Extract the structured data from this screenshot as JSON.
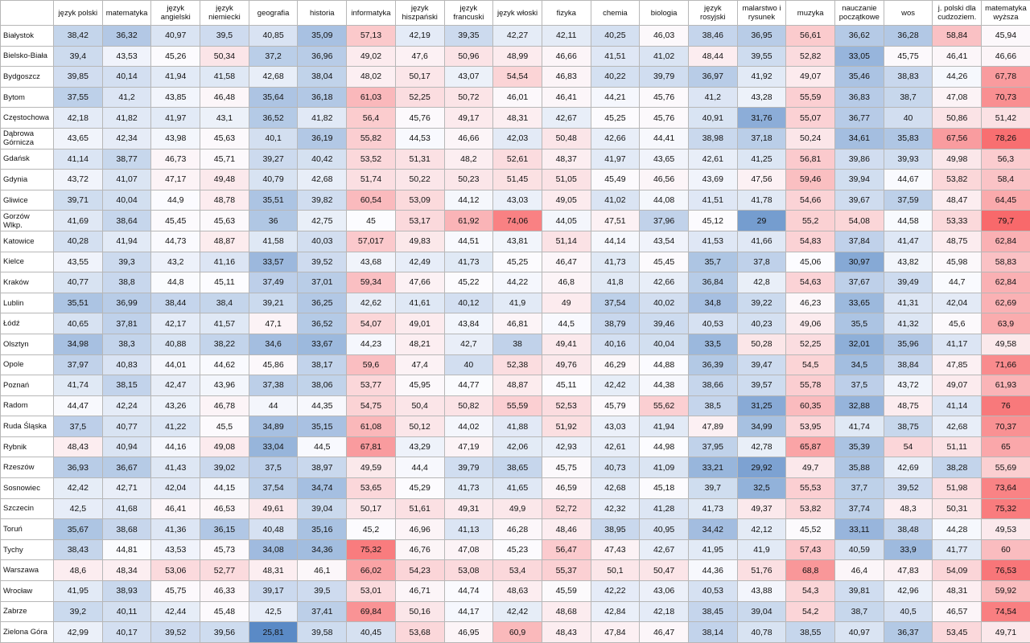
{
  "chart_data": {
    "type": "heatmap",
    "columns": [
      "język polski",
      "matematyka",
      "język angielski",
      "język niemiecki",
      "geografia",
      "historia",
      "informatyka",
      "język hiszpański",
      "język francuski",
      "język włoski",
      "fizyka",
      "chemia",
      "biologia",
      "język rosyjski",
      "malarstwo i rysunek",
      "muzyka",
      "nauczanie początkowe",
      "wos",
      "j. polski dla cudzoziem.",
      "matematyka wyższa"
    ],
    "rows": [
      {
        "city": "Białystok",
        "values": [
          "38,42",
          "36,32",
          "40,97",
          "39,5",
          "40,85",
          "35,09",
          "57,13",
          "42,19",
          "39,35",
          "42,27",
          "42,11",
          "40,25",
          "46,03",
          "38,46",
          "36,95",
          "56,61",
          "36,62",
          "36,28",
          "58,84",
          "45,94"
        ]
      },
      {
        "city": "Bielsko-Biała",
        "values": [
          "39,4",
          "43,53",
          "45,26",
          "50,34",
          "37,2",
          "36,96",
          "49,02",
          "47,6",
          "50,96",
          "48,99",
          "46,66",
          "41,51",
          "41,02",
          "48,44",
          "39,55",
          "52,82",
          "33,05",
          "45,75",
          "46,41",
          "46,66"
        ]
      },
      {
        "city": "Bydgoszcz",
        "values": [
          "39,85",
          "40,14",
          "41,94",
          "41,58",
          "42,68",
          "38,04",
          "48,02",
          "50,17",
          "43,07",
          "54,54",
          "46,83",
          "40,22",
          "39,79",
          "36,97",
          "41,92",
          "49,07",
          "35,46",
          "38,83",
          "44,26",
          "67,78"
        ]
      },
      {
        "city": "Bytom",
        "values": [
          "37,55",
          "41,2",
          "43,85",
          "46,48",
          "35,64",
          "36,18",
          "61,03",
          "52,25",
          "50,72",
          "46,01",
          "46,41",
          "44,21",
          "45,76",
          "41,2",
          "43,28",
          "55,59",
          "36,83",
          "38,7",
          "47,08",
          "70,73"
        ]
      },
      {
        "city": "Częstochowa",
        "values": [
          "42,18",
          "41,82",
          "41,97",
          "43,1",
          "36,52",
          "41,82",
          "56,4",
          "45,76",
          "49,17",
          "48,31",
          "42,67",
          "45,25",
          "45,76",
          "40,91",
          "31,76",
          "55,07",
          "36,77",
          "40",
          "50,86",
          "51,42"
        ]
      },
      {
        "city": "Dąbrowa Górnicza",
        "values": [
          "43,65",
          "42,34",
          "43,98",
          "45,63",
          "40,1",
          "36,19",
          "55,82",
          "44,53",
          "46,66",
          "42,03",
          "50,48",
          "42,66",
          "44,41",
          "38,98",
          "37,18",
          "50,24",
          "34,61",
          "35,83",
          "67,56",
          "78,26"
        ]
      },
      {
        "city": "Gdańsk",
        "values": [
          "41,14",
          "38,77",
          "46,73",
          "45,71",
          "39,27",
          "40,42",
          "53,52",
          "51,31",
          "48,2",
          "52,61",
          "48,37",
          "41,97",
          "43,65",
          "42,61",
          "41,25",
          "56,81",
          "39,86",
          "39,93",
          "49,98",
          "56,3"
        ]
      },
      {
        "city": "Gdynia",
        "values": [
          "43,72",
          "41,07",
          "47,17",
          "49,48",
          "40,79",
          "42,68",
          "51,74",
          "50,22",
          "50,23",
          "51,45",
          "51,05",
          "45,49",
          "46,56",
          "43,69",
          "47,56",
          "59,46",
          "39,94",
          "44,67",
          "53,82",
          "58,4"
        ]
      },
      {
        "city": "Gliwice",
        "values": [
          "39,71",
          "40,04",
          "44,9",
          "48,78",
          "35,51",
          "39,82",
          "60,54",
          "53,09",
          "44,12",
          "43,03",
          "49,05",
          "41,02",
          "44,08",
          "41,51",
          "41,78",
          "54,66",
          "39,67",
          "37,59",
          "48,47",
          "64,45"
        ]
      },
      {
        "city": "Gorzów Wlkp.",
        "values": [
          "41,69",
          "38,64",
          "45,45",
          "45,63",
          "36",
          "42,75",
          "45",
          "53,17",
          "61,92",
          "74,06",
          "44,05",
          "47,51",
          "37,96",
          "45,12",
          "29",
          "55,2",
          "54,08",
          "44,58",
          "53,33",
          "79,7"
        ]
      },
      {
        "city": "Katowice",
        "values": [
          "40,28",
          "41,94",
          "44,73",
          "48,87",
          "41,58",
          "40,03",
          "57,017",
          "49,83",
          "44,51",
          "43,81",
          "51,14",
          "44,14",
          "43,54",
          "41,53",
          "41,66",
          "54,83",
          "37,84",
          "41,47",
          "48,75",
          "62,84"
        ]
      },
      {
        "city": "Kielce",
        "values": [
          "43,55",
          "39,3",
          "43,2",
          "41,16",
          "33,57",
          "39,52",
          "43,68",
          "42,49",
          "41,73",
          "45,25",
          "46,47",
          "41,73",
          "45,45",
          "35,7",
          "37,8",
          "45,06",
          "30,97",
          "43,82",
          "45,98",
          "58,83"
        ]
      },
      {
        "city": "Kraków",
        "values": [
          "40,77",
          "38,8",
          "44,8",
          "45,11",
          "37,49",
          "37,01",
          "59,34",
          "47,66",
          "45,22",
          "44,22",
          "46,8",
          "41,8",
          "42,66",
          "36,84",
          "42,8",
          "54,63",
          "37,67",
          "39,49",
          "44,7",
          "62,84"
        ]
      },
      {
        "city": "Lublin",
        "values": [
          "35,51",
          "36,99",
          "38,44",
          "38,4",
          "39,21",
          "36,25",
          "42,62",
          "41,61",
          "40,12",
          "41,9",
          "49",
          "37,54",
          "40,02",
          "34,8",
          "39,22",
          "46,23",
          "33,65",
          "41,31",
          "42,04",
          "62,69"
        ]
      },
      {
        "city": "Łódź",
        "values": [
          "40,65",
          "37,81",
          "42,17",
          "41,57",
          "47,1",
          "36,52",
          "54,07",
          "49,01",
          "43,84",
          "46,81",
          "44,5",
          "38,79",
          "39,46",
          "40,53",
          "40,23",
          "49,06",
          "35,5",
          "41,32",
          "45,6",
          "63,9"
        ]
      },
      {
        "city": "Olsztyn",
        "values": [
          "34,98",
          "38,3",
          "40,88",
          "38,22",
          "34,6",
          "33,67",
          "44,23",
          "48,21",
          "42,7",
          "38",
          "49,41",
          "40,16",
          "40,04",
          "33,5",
          "50,28",
          "52,25",
          "32,01",
          "35,96",
          "41,17",
          "49,58"
        ]
      },
      {
        "city": "Opole",
        "values": [
          "37,97",
          "40,83",
          "44,01",
          "44,62",
          "45,86",
          "38,17",
          "59,6",
          "47,4",
          "40",
          "52,38",
          "49,76",
          "46,29",
          "44,88",
          "36,39",
          "39,47",
          "54,5",
          "34,5",
          "38,84",
          "47,85",
          "71,66"
        ]
      },
      {
        "city": "Poznań",
        "values": [
          "41,74",
          "38,15",
          "42,47",
          "43,96",
          "37,38",
          "38,06",
          "53,77",
          "45,95",
          "44,77",
          "48,87",
          "45,11",
          "42,42",
          "44,38",
          "38,66",
          "39,57",
          "55,78",
          "37,5",
          "43,72",
          "49,07",
          "61,93"
        ]
      },
      {
        "city": "Radom",
        "values": [
          "44,47",
          "42,24",
          "43,26",
          "46,78",
          "44",
          "44,35",
          "54,75",
          "50,4",
          "50,82",
          "55,59",
          "52,53",
          "45,79",
          "55,62",
          "38,5",
          "31,25",
          "60,35",
          "32,88",
          "48,75",
          "41,14",
          "76"
        ]
      },
      {
        "city": "Ruda Śląska",
        "values": [
          "37,5",
          "40,77",
          "41,22",
          "45,5",
          "34,89",
          "35,15",
          "61,08",
          "50,12",
          "44,02",
          "41,88",
          "51,92",
          "43,03",
          "41,94",
          "47,89",
          "34,99",
          "53,95",
          "41,74",
          "38,75",
          "42,68",
          "70,37"
        ]
      },
      {
        "city": "Rybnik",
        "values": [
          "48,43",
          "40,94",
          "44,16",
          "49,08",
          "33,04",
          "44,5",
          "67,81",
          "43,29",
          "47,19",
          "42,06",
          "42,93",
          "42,61",
          "44,98",
          "37,95",
          "42,78",
          "65,87",
          "35,39",
          "54",
          "51,11",
          "65"
        ]
      },
      {
        "city": "Rzeszów",
        "values": [
          "36,93",
          "36,67",
          "41,43",
          "39,02",
          "37,5",
          "38,97",
          "49,59",
          "44,4",
          "39,79",
          "38,65",
          "45,75",
          "40,73",
          "41,09",
          "33,21",
          "29,92",
          "49,7",
          "35,88",
          "42,69",
          "38,28",
          "55,69"
        ]
      },
      {
        "city": "Sosnowiec",
        "values": [
          "42,42",
          "42,71",
          "42,04",
          "44,15",
          "37,54",
          "34,74",
          "53,65",
          "45,29",
          "41,73",
          "41,65",
          "46,59",
          "42,68",
          "45,18",
          "39,7",
          "32,5",
          "55,53",
          "37,7",
          "39,52",
          "51,98",
          "73,64"
        ]
      },
      {
        "city": "Szczecin",
        "values": [
          "42,5",
          "41,68",
          "46,41",
          "46,53",
          "49,61",
          "39,04",
          "50,17",
          "51,61",
          "49,31",
          "49,9",
          "52,72",
          "42,32",
          "41,28",
          "41,73",
          "49,37",
          "53,82",
          "37,74",
          "48,3",
          "50,31",
          "75,32"
        ]
      },
      {
        "city": "Toruń",
        "values": [
          "35,67",
          "38,68",
          "41,36",
          "36,15",
          "40,48",
          "35,16",
          "45,2",
          "46,96",
          "41,13",
          "46,28",
          "48,46",
          "38,95",
          "40,95",
          "34,42",
          "42,12",
          "45,52",
          "33,11",
          "38,48",
          "44,28",
          "49,53"
        ]
      },
      {
        "city": "Tychy",
        "values": [
          "38,43",
          "44,81",
          "43,53",
          "45,73",
          "34,08",
          "34,36",
          "75,32",
          "46,76",
          "47,08",
          "45,23",
          "56,47",
          "47,43",
          "42,67",
          "41,95",
          "41,9",
          "57,43",
          "40,59",
          "33,9",
          "41,77",
          "60"
        ]
      },
      {
        "city": "Warszawa",
        "values": [
          "48,6",
          "48,34",
          "53,06",
          "52,77",
          "48,31",
          "46,1",
          "66,02",
          "54,23",
          "53,08",
          "53,4",
          "55,37",
          "50,1",
          "50,47",
          "44,36",
          "51,76",
          "68,8",
          "46,4",
          "47,83",
          "54,09",
          "76,53"
        ]
      },
      {
        "city": "Wrocław",
        "values": [
          "41,95",
          "38,93",
          "45,75",
          "46,33",
          "39,17",
          "39,5",
          "53,01",
          "46,71",
          "44,74",
          "48,63",
          "45,59",
          "42,22",
          "43,06",
          "40,53",
          "43,88",
          "54,3",
          "39,81",
          "42,96",
          "48,31",
          "59,92"
        ]
      },
      {
        "city": "Zabrze",
        "values": [
          "39,2",
          "40,11",
          "42,44",
          "45,48",
          "42,5",
          "37,41",
          "69,84",
          "50,16",
          "44,17",
          "42,42",
          "48,68",
          "42,84",
          "42,18",
          "38,45",
          "39,04",
          "54,2",
          "38,7",
          "40,5",
          "46,57",
          "74,54"
        ]
      },
      {
        "city": "Zielona Góra",
        "values": [
          "42,99",
          "40,17",
          "39,52",
          "39,56",
          "25,81",
          "39,58",
          "40,45",
          "53,68",
          "46,95",
          "60,9",
          "48,43",
          "47,84",
          "46,47",
          "38,14",
          "40,78",
          "38,55",
          "40,97",
          "36,37",
          "53,45",
          "49,71"
        ]
      }
    ],
    "color_scale": {
      "low": "#5a8ac6",
      "mid": "#fcfcff",
      "high": "#f8696b",
      "min": 25.81,
      "midpoint": 45,
      "max": 79.7
    }
  }
}
